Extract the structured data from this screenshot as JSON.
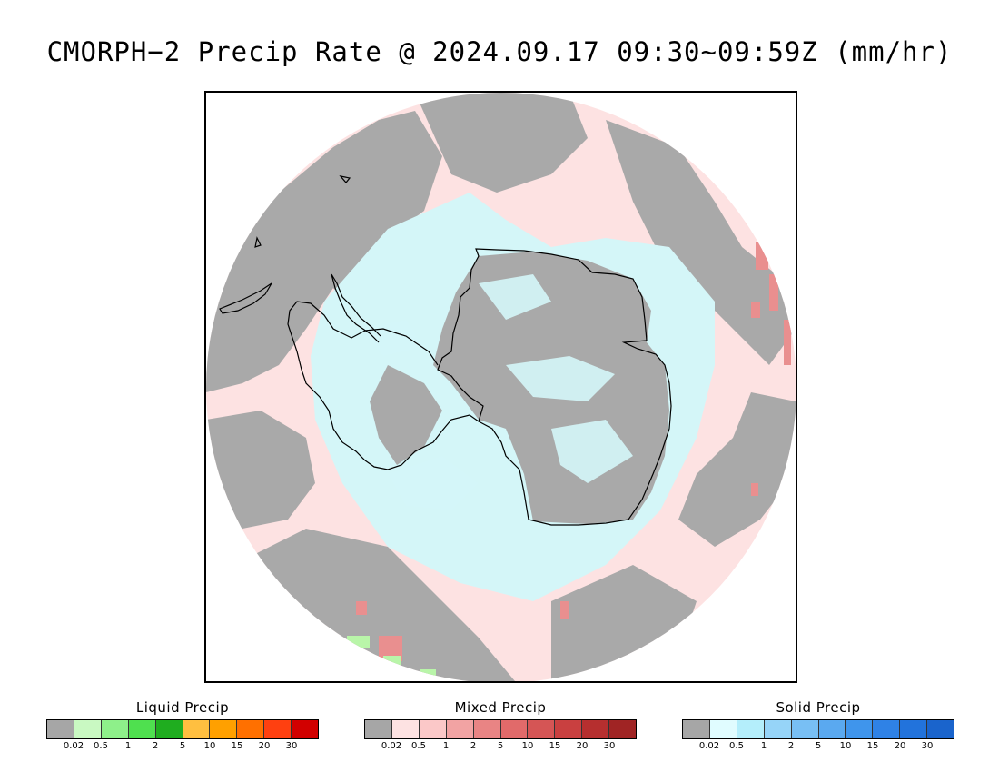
{
  "title": "CMORPH−2 Precip Rate @ 2024.09.17 09:30~09:59Z (mm/hr)",
  "map": {
    "projection": "south-polar-stereographic",
    "colors": {
      "background": "#ffffff",
      "no_precip": "#a9a9a9",
      "ocean_mixed_light": "#fde2e2",
      "ice_snow_light": "#d4f6f8",
      "mixed_moderate": "#e98f8f",
      "liquid_light": "#b9f5a9",
      "coastline": "#000000"
    }
  },
  "legends": [
    {
      "title": "Liquid Precip",
      "ticks": [
        "0.02",
        "0.5",
        "1",
        "2",
        "5",
        "10",
        "15",
        "20",
        "30"
      ],
      "colors": [
        "#a6a6a6",
        "#c9f9c2",
        "#8ef08a",
        "#4fe04f",
        "#1fad1f",
        "#ffbf40",
        "#ffa000",
        "#ff7000",
        "#ff4010",
        "#d20000"
      ]
    },
    {
      "title": "Mixed Precip",
      "ticks": [
        "0.02",
        "0.5",
        "1",
        "2",
        "5",
        "10",
        "15",
        "20",
        "30"
      ],
      "colors": [
        "#a6a6a6",
        "#fde2e2",
        "#fbc8c8",
        "#f2a3a3",
        "#e98484",
        "#e16a6a",
        "#d55555",
        "#c94040",
        "#b62f2f",
        "#a02424"
      ]
    },
    {
      "title": "Solid Precip",
      "ticks": [
        "0.02",
        "0.5",
        "1",
        "2",
        "5",
        "10",
        "15",
        "20",
        "30"
      ],
      "colors": [
        "#a6a6a6",
        "#e0fcff",
        "#b4eefb",
        "#96d4f8",
        "#78bff4",
        "#5aa9f0",
        "#3f95ec",
        "#2f82e6",
        "#2273dc",
        "#1a64cc"
      ]
    }
  ]
}
